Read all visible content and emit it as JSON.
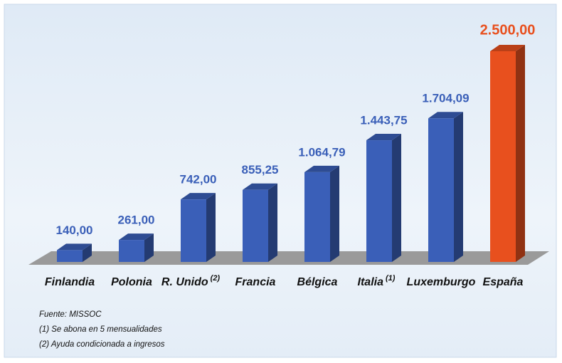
{
  "chart_data": {
    "type": "bar3d",
    "categories": [
      "Finlandia",
      "Polonia",
      "R. Unido",
      "Francia",
      "Bélgica",
      "Italia",
      "Luxemburgo",
      "España"
    ],
    "category_notes": [
      null,
      null,
      "(2)",
      null,
      null,
      "(1)",
      null,
      null
    ],
    "values": [
      140,
      261,
      742,
      855.25,
      1064.79,
      1443.75,
      1704.09,
      2500
    ],
    "value_labels": [
      "140,00",
      "261,00",
      "742,00",
      "855,25",
      "1.064,79",
      "1.443,75",
      "1.704,09",
      "2.500,00"
    ],
    "colors": [
      "#3a5fb8",
      "#3a5fb8",
      "#3a5fb8",
      "#3a5fb8",
      "#3a5fb8",
      "#3a5fb8",
      "#3a5fb8",
      "#e8501e"
    ],
    "footnotes": [
      "Fuente: MISSOC",
      "(1) Se abona en 5 mensualidades",
      "(2) Ayuda condicionada a ingresos"
    ]
  }
}
